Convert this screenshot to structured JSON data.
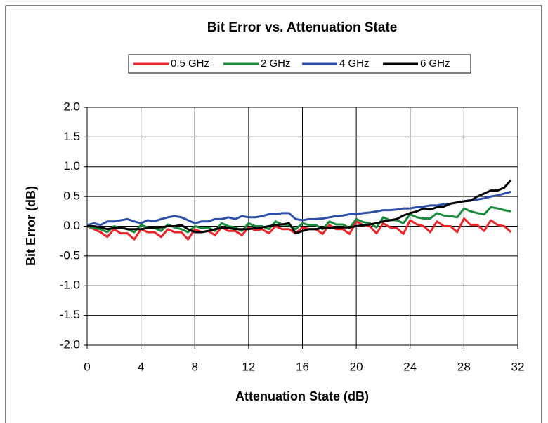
{
  "chart_data": {
    "type": "line",
    "title": "Bit Error vs. Attenuation State",
    "xlabel": "Attenuation State (dB)",
    "ylabel": "Bit Error (dB)",
    "x": [
      0,
      0.5,
      1,
      1.5,
      2,
      2.5,
      3,
      3.5,
      4,
      4.5,
      5,
      5.5,
      6,
      6.5,
      7,
      7.5,
      8,
      8.5,
      9,
      9.5,
      10,
      10.5,
      11,
      11.5,
      12,
      12.5,
      13,
      13.5,
      14,
      14.5,
      15,
      15.5,
      16,
      16.5,
      17,
      17.5,
      18,
      18.5,
      19,
      19.5,
      20,
      20.5,
      21,
      21.5,
      22,
      22.5,
      23,
      23.5,
      24,
      24.5,
      25,
      25.5,
      26,
      26.5,
      27,
      27.5,
      28,
      28.5,
      29,
      29.5,
      30,
      30.5,
      31,
      31.5
    ],
    "series": [
      {
        "name": "0.5 GHz",
        "color": "#e8262b",
        "values": [
          0,
          -0.05,
          -0.1,
          -0.18,
          -0.05,
          -0.12,
          -0.12,
          -0.22,
          -0.05,
          -0.1,
          -0.1,
          -0.18,
          -0.05,
          -0.1,
          -0.1,
          -0.22,
          -0.05,
          -0.1,
          -0.08,
          -0.15,
          -0.02,
          -0.08,
          -0.08,
          -0.15,
          -0.02,
          -0.07,
          -0.05,
          -0.12,
          0,
          -0.05,
          -0.05,
          -0.12,
          -0.02,
          -0.05,
          -0.05,
          -0.13,
          0.02,
          -0.05,
          -0.05,
          -0.13,
          0.08,
          0.02,
          0,
          -0.12,
          0.05,
          -0.02,
          -0.03,
          -0.13,
          0.1,
          0.03,
          0,
          -0.1,
          0.08,
          0,
          0,
          -0.1,
          0.13,
          0.02,
          0.02,
          -0.08,
          0.1,
          0.02,
          0,
          -0.1
        ]
      },
      {
        "name": "2 GHz",
        "color": "#1a8a3c",
        "values": [
          0,
          -0.03,
          -0.05,
          -0.1,
          0,
          -0.03,
          -0.05,
          -0.1,
          0.02,
          -0.02,
          -0.03,
          -0.08,
          0.03,
          -0.02,
          -0.05,
          -0.1,
          0,
          -0.03,
          -0.02,
          -0.08,
          0.05,
          0,
          -0.02,
          -0.08,
          0.05,
          0,
          0,
          -0.05,
          0.08,
          0.03,
          0.02,
          -0.05,
          0.05,
          0.02,
          0.02,
          -0.05,
          0.08,
          0.03,
          0.03,
          -0.03,
          0.12,
          0.07,
          0.05,
          -0.02,
          0.15,
          0.1,
          0.1,
          0.05,
          0.2,
          0.15,
          0.13,
          0.13,
          0.22,
          0.18,
          0.17,
          0.15,
          0.3,
          0.25,
          0.22,
          0.2,
          0.32,
          0.3,
          0.27,
          0.25
        ]
      },
      {
        "name": "4 GHz",
        "color": "#2e4fa8",
        "values": [
          0.02,
          0.05,
          0.02,
          0.08,
          0.08,
          0.1,
          0.12,
          0.08,
          0.05,
          0.1,
          0.08,
          0.12,
          0.15,
          0.17,
          0.15,
          0.1,
          0.05,
          0.08,
          0.08,
          0.12,
          0.12,
          0.15,
          0.12,
          0.17,
          0.15,
          0.15,
          0.17,
          0.2,
          0.2,
          0.22,
          0.22,
          0.12,
          0.1,
          0.12,
          0.12,
          0.13,
          0.15,
          0.17,
          0.18,
          0.2,
          0.2,
          0.22,
          0.23,
          0.25,
          0.27,
          0.27,
          0.28,
          0.3,
          0.3,
          0.32,
          0.33,
          0.35,
          0.35,
          0.37,
          0.38,
          0.4,
          0.42,
          0.44,
          0.45,
          0.47,
          0.5,
          0.52,
          0.55,
          0.58
        ]
      },
      {
        "name": "6 GHz",
        "color": "#000000",
        "values": [
          0,
          0,
          -0.02,
          -0.05,
          -0.03,
          -0.02,
          -0.05,
          -0.05,
          -0.05,
          -0.03,
          -0.02,
          -0.02,
          0,
          0,
          0.02,
          -0.05,
          -0.1,
          -0.1,
          -0.08,
          -0.05,
          -0.03,
          -0.03,
          -0.05,
          -0.05,
          -0.05,
          -0.03,
          -0.02,
          0,
          0.02,
          0.03,
          0.05,
          -0.12,
          -0.08,
          -0.05,
          -0.05,
          -0.03,
          -0.03,
          -0.02,
          -0.02,
          -0.02,
          0,
          0.02,
          0.03,
          0.05,
          0.08,
          0.1,
          0.12,
          0.18,
          0.22,
          0.25,
          0.3,
          0.28,
          0.32,
          0.33,
          0.38,
          0.4,
          0.42,
          0.43,
          0.5,
          0.55,
          0.6,
          0.6,
          0.65,
          0.78
        ]
      }
    ],
    "xlim": [
      0,
      32
    ],
    "xticks": [
      0,
      4,
      8,
      12,
      16,
      20,
      24,
      28,
      32
    ],
    "ylim": [
      -2,
      2
    ],
    "yticks": [
      {
        "value": -2,
        "label": "-2.0"
      },
      -1.5,
      {
        "value": -1,
        "label": "-1.0"
      },
      -0.5,
      {
        "value": 0,
        "label": "0.0"
      },
      0.5,
      {
        "value": 1,
        "label": "1.0"
      },
      1.5,
      {
        "value": 2,
        "label": "2.0"
      }
    ],
    "grid": true,
    "legend": "top"
  }
}
